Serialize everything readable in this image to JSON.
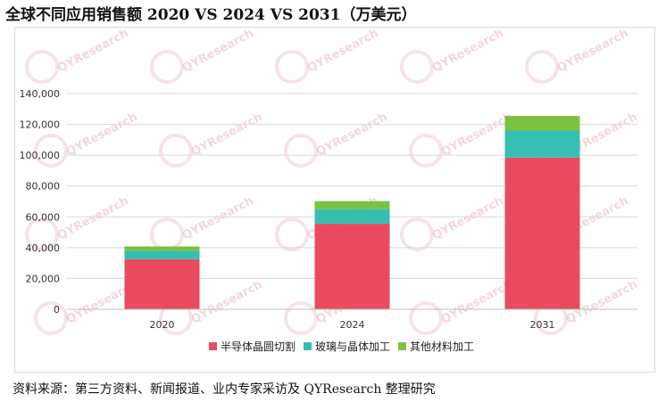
{
  "title": "全球不同应用销售额 2020 VS 2024 VS 2031（万美元）",
  "source": "资料来源：第三方资料、新闻报道、业内专家采访及 QYResearch 整理研究",
  "watermark": "QYResearch",
  "chart_data": {
    "type": "bar",
    "stacked": true,
    "categories": [
      "2020",
      "2024",
      "2031"
    ],
    "series": [
      {
        "name": "半导体晶圆切割",
        "color": "#e84b5f",
        "values": [
          32500,
          55500,
          98500
        ]
      },
      {
        "name": "玻璃与晶体加工",
        "color": "#34bfb1",
        "values": [
          5500,
          9500,
          17500
        ]
      },
      {
        "name": "其他材料加工",
        "color": "#7cc242",
        "values": [
          2800,
          5200,
          9500
        ]
      }
    ],
    "y_ticks": [
      "0",
      "20,000",
      "40,000",
      "60,000",
      "80,000",
      "100,000",
      "120,000",
      "140,000"
    ],
    "ylim": [
      0,
      140000
    ],
    "grid": true,
    "legend_position": "bottom"
  }
}
